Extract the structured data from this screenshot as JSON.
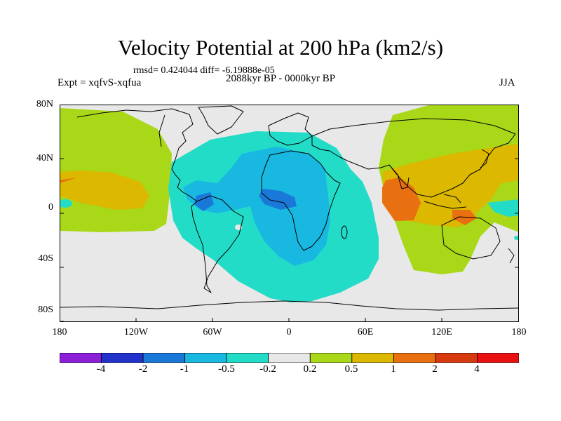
{
  "title": "Velocity Potential at 200 hPa (km2/s)",
  "stats": "rmsd= 0.424044 diff= -6.19888e-05",
  "experiment": "Expt = xqfvS-xqfua",
  "period": "2088kyr BP - 0000kyr BP",
  "season": "JJA",
  "lat_labels": [
    "80N",
    "40N",
    "0",
    "40S",
    "80S"
  ],
  "lon_labels": [
    "180",
    "120W",
    "60W",
    "0",
    "60E",
    "120E",
    "180"
  ],
  "colorbar": {
    "labels": [
      "-4",
      "-2",
      "-1",
      "-0.5",
      "-0.2",
      "0.2",
      "0.5",
      "1",
      "2",
      "4"
    ],
    "colors": [
      "#8c1ed8",
      "#2233cc",
      "#1a78d8",
      "#18b8e0",
      "#22dcc8",
      "#e8e8e8",
      "#a8d818",
      "#dcb800",
      "#e87010",
      "#d83a10",
      "#e81010"
    ]
  }
}
